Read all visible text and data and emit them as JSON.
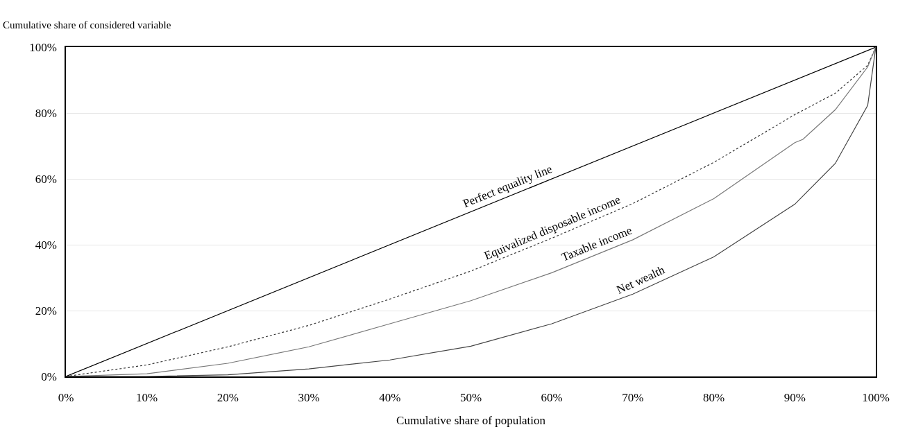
{
  "chart_data": {
    "type": "line",
    "xlabel": "Cumulative share of population",
    "ylabel": "Cumulative share of considered variable",
    "xlim": [
      0,
      100
    ],
    "ylim": [
      0,
      100
    ],
    "xticks": [
      {
        "value": 0,
        "label": "0%"
      },
      {
        "value": 10,
        "label": "10%"
      },
      {
        "value": 20,
        "label": "20%"
      },
      {
        "value": 30,
        "label": "30%"
      },
      {
        "value": 40,
        "label": "40%"
      },
      {
        "value": 50,
        "label": "50%"
      },
      {
        "value": 60,
        "label": "60%"
      },
      {
        "value": 70,
        "label": "70%"
      },
      {
        "value": 80,
        "label": "80%"
      },
      {
        "value": 90,
        "label": "90%"
      },
      {
        "value": 100,
        "label": "100%"
      }
    ],
    "yticks": [
      {
        "value": 0,
        "label": "0%"
      },
      {
        "value": 20,
        "label": "20%"
      },
      {
        "value": 40,
        "label": "40%"
      },
      {
        "value": 60,
        "label": "60%"
      },
      {
        "value": 80,
        "label": "80%"
      },
      {
        "value": 100,
        "label": "100%"
      }
    ],
    "grid": "y",
    "marker": "none",
    "series": [
      {
        "name": "Perfect equality line",
        "color": "#000000",
        "x": [
          0,
          100
        ],
        "values": [
          0,
          100
        ]
      },
      {
        "name": "Equivalized disposable income",
        "color": "#333333",
        "line_style": "dotted",
        "x": [
          0,
          10,
          20,
          30,
          40,
          50,
          60,
          70,
          80,
          90,
          95,
          99,
          100
        ],
        "values": [
          0,
          3.5,
          9,
          15.5,
          23.5,
          32,
          42,
          52.5,
          65,
          79.5,
          86,
          94.5,
          100
        ]
      },
      {
        "name": "Taxable income",
        "color": "#777777",
        "x": [
          0,
          10,
          20,
          30,
          40,
          50,
          60,
          70,
          80,
          90,
          91,
          95,
          99,
          100
        ],
        "values": [
          0,
          0.8,
          4,
          9,
          16,
          23,
          31.5,
          41.5,
          54,
          71,
          72,
          81,
          94,
          100
        ]
      },
      {
        "name": "Net wealth",
        "color": "#444444",
        "x": [
          0,
          10,
          20,
          30,
          40,
          50,
          60,
          70,
          80,
          90,
          95,
          99,
          100
        ],
        "values": [
          0,
          0,
          0.5,
          2.3,
          5,
          9.2,
          16,
          25,
          36.3,
          52.3,
          64.7,
          82.3,
          100
        ]
      }
    ]
  }
}
